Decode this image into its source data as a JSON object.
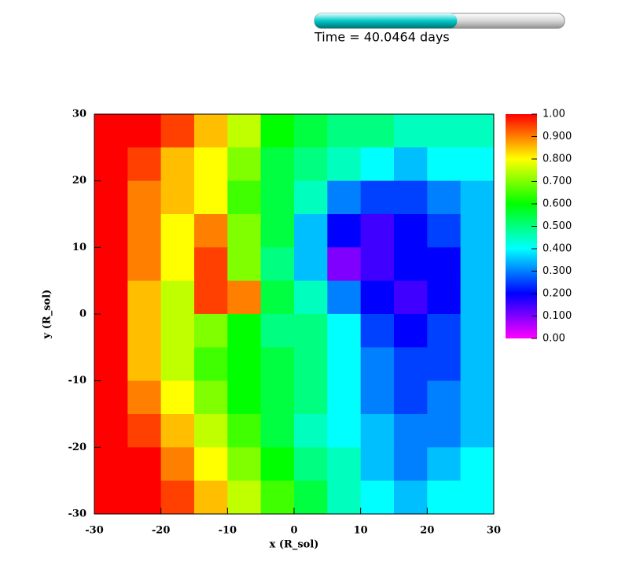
{
  "chart_data": {
    "type": "heatmap",
    "title": "Time = 40.0464 days",
    "time_fraction": 0.57,
    "xlabel": "x (R_sol)",
    "ylabel": "y (R_sol)",
    "xlim": [
      -30,
      30
    ],
    "ylim": [
      -30,
      30
    ],
    "xticks": [
      -30,
      -20,
      -10,
      0,
      10,
      20,
      30
    ],
    "yticks": [
      -30,
      -20,
      -10,
      0,
      10,
      20,
      30
    ],
    "xbins": [
      -30,
      -25,
      -20,
      -15,
      -10,
      -5,
      0,
      5,
      10,
      15,
      20,
      25,
      30
    ],
    "ybins": [
      30,
      25,
      20,
      15,
      10,
      5,
      0,
      -5,
      -10,
      -15,
      -20,
      -25,
      -30
    ],
    "z": [
      [
        1,
        1,
        0.95,
        0.85,
        0.75,
        0.6,
        0.55,
        0.5,
        0.5,
        0.45,
        0.45,
        0.45
      ],
      [
        1,
        0.95,
        0.85,
        0.8,
        0.7,
        0.55,
        0.5,
        0.45,
        0.4,
        0.35,
        0.4,
        0.4
      ],
      [
        1,
        0.9,
        0.85,
        0.8,
        0.65,
        0.55,
        0.45,
        0.3,
        0.25,
        0.25,
        0.3,
        0.35
      ],
      [
        1,
        0.9,
        0.8,
        0.9,
        0.7,
        0.55,
        0.35,
        0.2,
        0.15,
        0.2,
        0.25,
        0.35
      ],
      [
        1,
        0.9,
        0.8,
        0.95,
        0.7,
        0.5,
        0.35,
        0.1,
        0.15,
        0.2,
        0.2,
        0.35
      ],
      [
        1,
        0.85,
        0.75,
        0.95,
        0.9,
        0.55,
        0.45,
        0.3,
        0.2,
        0.15,
        0.2,
        0.35
      ],
      [
        1,
        0.85,
        0.75,
        0.7,
        0.6,
        0.5,
        0.5,
        0.4,
        0.25,
        0.2,
        0.25,
        0.35
      ],
      [
        1,
        0.85,
        0.75,
        0.65,
        0.6,
        0.55,
        0.5,
        0.4,
        0.3,
        0.25,
        0.25,
        0.35
      ],
      [
        1,
        0.9,
        0.8,
        0.7,
        0.6,
        0.55,
        0.5,
        0.4,
        0.3,
        0.25,
        0.3,
        0.35
      ],
      [
        1,
        0.95,
        0.85,
        0.75,
        0.65,
        0.55,
        0.45,
        0.4,
        0.35,
        0.3,
        0.3,
        0.35
      ],
      [
        1,
        1,
        0.9,
        0.8,
        0.7,
        0.6,
        0.5,
        0.45,
        0.35,
        0.3,
        0.35,
        0.4
      ],
      [
        1,
        1,
        0.95,
        0.85,
        0.75,
        0.65,
        0.55,
        0.45,
        0.4,
        0.35,
        0.4,
        0.4
      ]
    ],
    "colormap": [
      "#ff00ff",
      "#0000ff",
      "#00ffff",
      "#00ff00",
      "#ffff00",
      "#ff0000"
    ],
    "clim": [
      0,
      1
    ],
    "cticks": [
      {
        "value": 1,
        "label": "1.00"
      },
      {
        "value": 0.9,
        "label": "0.900"
      },
      {
        "value": 0.8,
        "label": "0.800"
      },
      {
        "value": 0.7,
        "label": "0.700"
      },
      {
        "value": 0.6,
        "label": "0.600"
      },
      {
        "value": 0.5,
        "label": "0.500"
      },
      {
        "value": 0.4,
        "label": "0.400"
      },
      {
        "value": 0.3,
        "label": "0.300"
      },
      {
        "value": 0.2,
        "label": "0.200"
      },
      {
        "value": 0.1,
        "label": "0.100"
      },
      {
        "value": 0,
        "label": "0.00"
      }
    ]
  }
}
